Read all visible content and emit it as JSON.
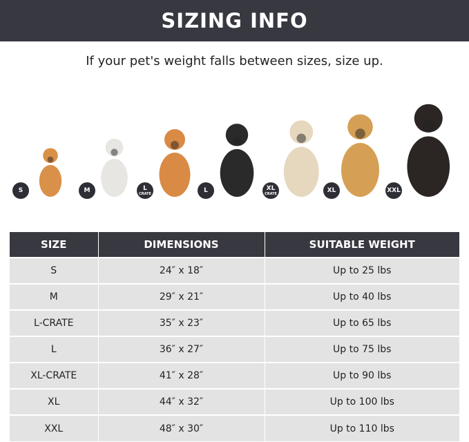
{
  "header": {
    "title": "SIZING INFO"
  },
  "subtitle": "If your pet's weight falls between sizes, size up.",
  "dogs": [
    {
      "badge": "S",
      "sub": "",
      "color": "#d9914a"
    },
    {
      "badge": "M",
      "sub": "",
      "color": "#e8e6e2"
    },
    {
      "badge": "L",
      "sub": "CRATE",
      "color": "#d98a45"
    },
    {
      "badge": "L",
      "sub": "",
      "color": "#2a2a2a"
    },
    {
      "badge": "XL",
      "sub": "CRATE",
      "color": "#e6d8bf"
    },
    {
      "badge": "XL",
      "sub": "",
      "color": "#d5a055"
    },
    {
      "badge": "XXL",
      "sub": "",
      "color": "#2b2524"
    }
  ],
  "table": {
    "headers": [
      "SIZE",
      "DIMENSIONS",
      "SUITABLE WEIGHT"
    ],
    "rows": [
      [
        "S",
        "24″ x 18″",
        "Up to 25 lbs"
      ],
      [
        "M",
        "29″ x 21″",
        "Up to 40 lbs"
      ],
      [
        "L-CRATE",
        "35″ x 23″",
        "Up to 65 lbs"
      ],
      [
        "L",
        "36″ x 27″",
        "Up to 75 lbs"
      ],
      [
        "XL-CRATE",
        "41″ x 28″",
        "Up to 90 lbs"
      ],
      [
        "XL",
        "44″ x 32″",
        "Up to 100 lbs"
      ],
      [
        "XXL",
        "48″ x 30″",
        "Up to 110 lbs"
      ]
    ]
  }
}
